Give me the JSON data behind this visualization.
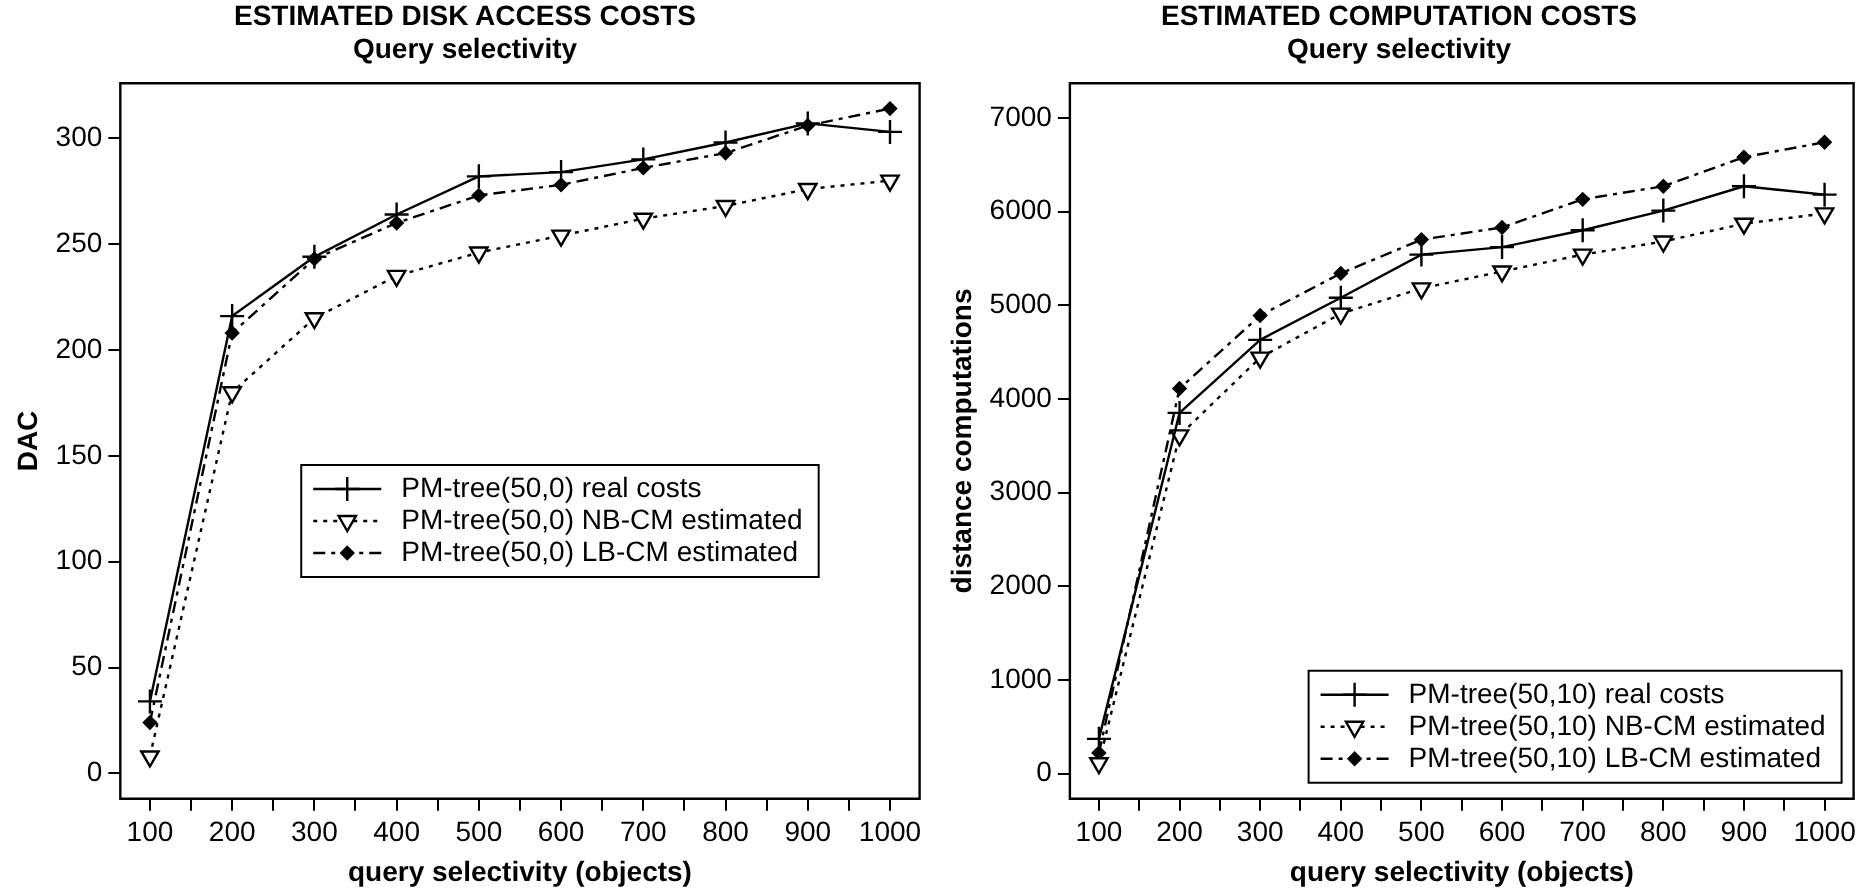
{
  "chart_data": [
    {
      "type": "line",
      "title": "ESTIMATED DISK ACCESS COSTS",
      "subtitle": "Query selectivity",
      "xlabel": "query selectivity (objects)",
      "ylabel": "DAC",
      "x": [
        100,
        200,
        300,
        400,
        500,
        600,
        700,
        800,
        900,
        1000
      ],
      "series": [
        {
          "name": "PM-tree(50,0) real costs",
          "color": "#000000",
          "marker": "cross",
          "line_style": "solid",
          "values": [
            34,
            216,
            244,
            264,
            282,
            284,
            290,
            298,
            307,
            303
          ]
        },
        {
          "name": "PM-tree(50,0) NB-CM estimated",
          "color": "#000000",
          "marker": "triangle",
          "line_style": "dotted",
          "values": [
            8,
            180,
            215,
            235,
            246,
            254,
            262,
            268,
            276,
            280
          ]
        },
        {
          "name": "PM-tree(50,0) LB-CM estimated",
          "color": "#000000",
          "marker": "diamond",
          "line_style": "dashed",
          "values": [
            24,
            208,
            243,
            260,
            273,
            278,
            286,
            293,
            306,
            314
          ]
        }
      ],
      "xlim": [
        64,
        1036
      ],
      "xticks": [
        100,
        {
          "value": 150,
          "label": null
        },
        200,
        {
          "value": 250,
          "label": null
        },
        300,
        {
          "value": 350,
          "label": null
        },
        400,
        {
          "value": 450,
          "label": null
        },
        500,
        {
          "value": 550,
          "label": null
        },
        600,
        {
          "value": 650,
          "label": null
        },
        700,
        {
          "value": 750,
          "label": null
        },
        800,
        {
          "value": 850,
          "label": null
        },
        900,
        {
          "value": 950,
          "label": null
        },
        1000
      ],
      "ylim": [
        -12,
        326
      ],
      "yticks": [
        0,
        50,
        100,
        150,
        200,
        250,
        300
      ],
      "grid": false,
      "legend": "center"
    },
    {
      "type": "line",
      "title": "ESTIMATED COMPUTATION COSTS",
      "subtitle": "Query selectivity",
      "xlabel": "query selectivity (objects)",
      "ylabel": "distance computations",
      "x": [
        100,
        200,
        300,
        400,
        500,
        600,
        700,
        800,
        900,
        1000
      ],
      "series": [
        {
          "name": "PM-tree(50,10) real costs",
          "color": "#000000",
          "marker": "cross",
          "line_style": "solid",
          "values": [
            370,
            3850,
            4630,
            5080,
            5540,
            5620,
            5800,
            6010,
            6270,
            6180
          ]
        },
        {
          "name": "PM-tree(50,10) NB-CM estimated",
          "color": "#000000",
          "marker": "triangle",
          "line_style": "dotted",
          "values": [
            110,
            3610,
            4440,
            4910,
            5180,
            5360,
            5540,
            5680,
            5870,
            5980
          ]
        },
        {
          "name": "PM-tree(50,10) LB-CM estimated",
          "color": "#000000",
          "marker": "diamond",
          "line_style": "dashed",
          "values": [
            220,
            4110,
            4890,
            5340,
            5700,
            5830,
            6130,
            6270,
            6580,
            6740
          ]
        }
      ],
      "xlim": [
        64,
        1036
      ],
      "xticks": [
        100,
        {
          "value": 150,
          "label": null
        },
        200,
        {
          "value": 250,
          "label": null
        },
        300,
        {
          "value": 350,
          "label": null
        },
        400,
        {
          "value": 450,
          "label": null
        },
        500,
        {
          "value": 550,
          "label": null
        },
        600,
        {
          "value": 650,
          "label": null
        },
        700,
        {
          "value": 750,
          "label": null
        },
        800,
        {
          "value": 850,
          "label": null
        },
        900,
        {
          "value": 950,
          "label": null
        },
        1000
      ],
      "ylim": [
        -270,
        7370
      ],
      "yticks": [
        0,
        1000,
        2000,
        3000,
        4000,
        5000,
        6000,
        7000
      ],
      "grid": false,
      "legend": "bottom right"
    }
  ]
}
